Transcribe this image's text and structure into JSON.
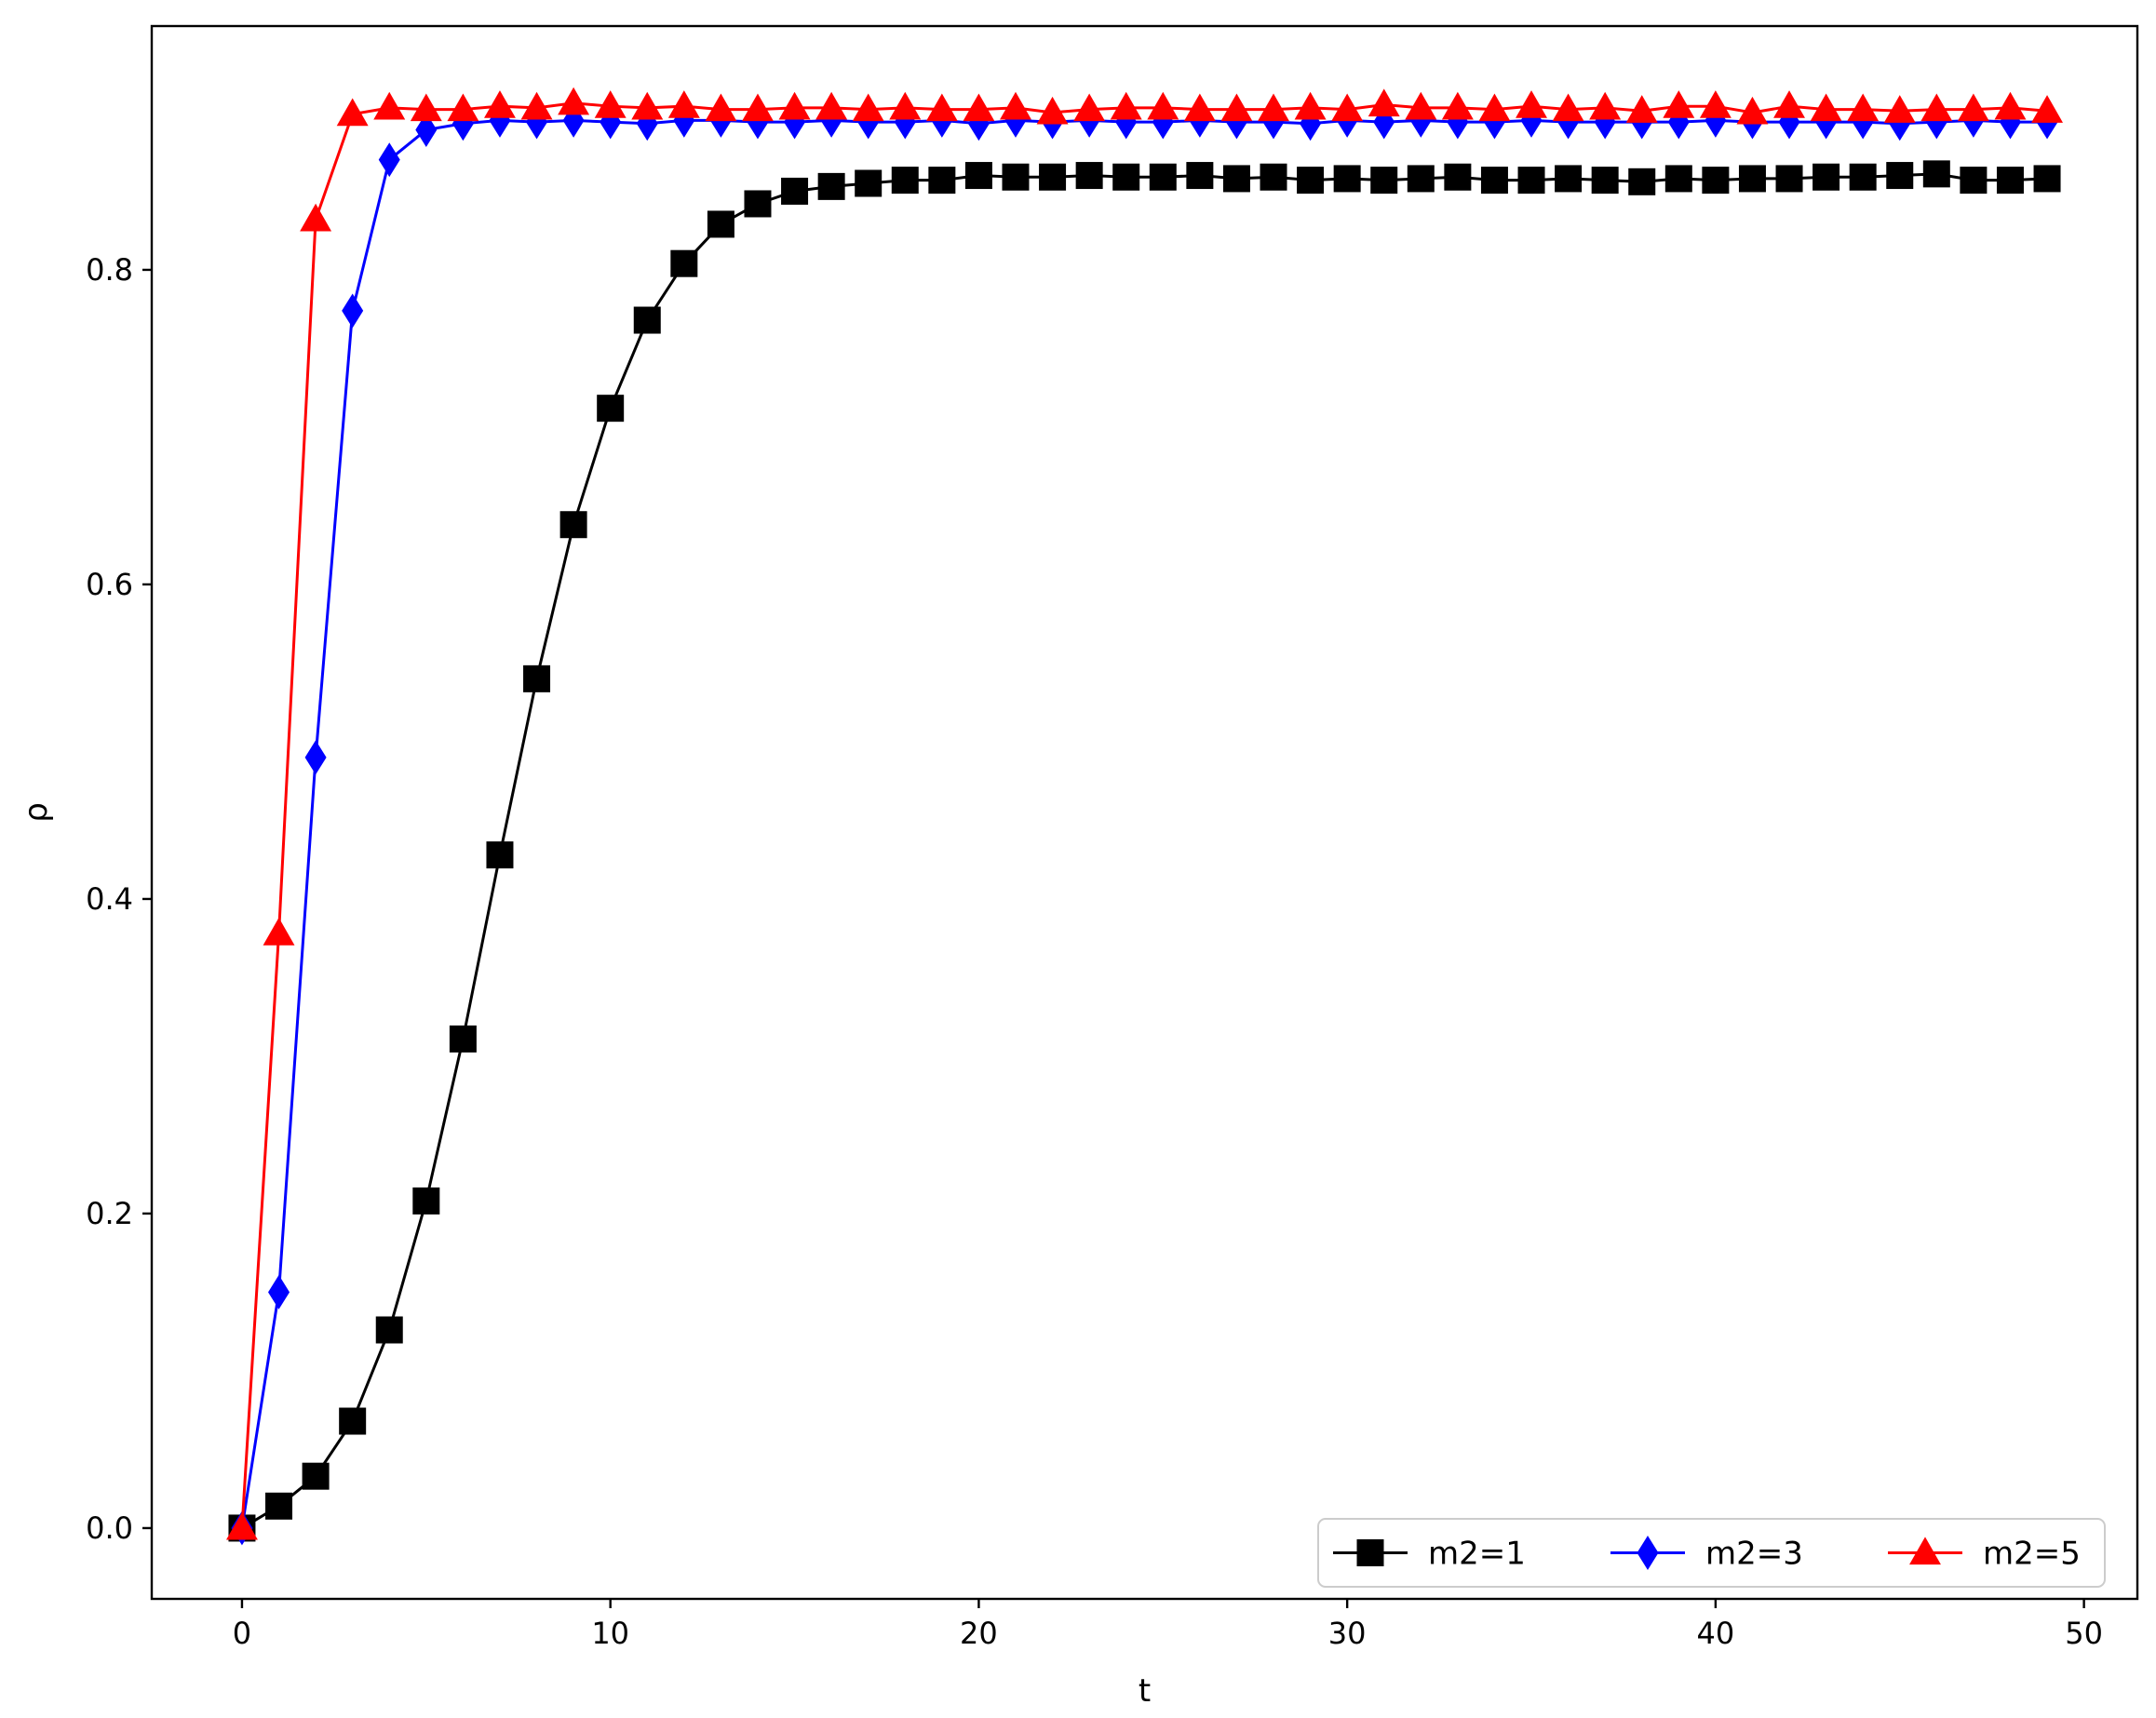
{
  "chart_data": {
    "type": "line",
    "title": "",
    "xlabel": "t",
    "ylabel": "ρ",
    "xlim": [
      -2.45,
      51.45
    ],
    "ylim": [
      -0.045,
      0.955
    ],
    "xticks": [
      0,
      10,
      20,
      30,
      40,
      50
    ],
    "xtick_labels": [
      "0",
      "10",
      "20",
      "30",
      "40",
      "50"
    ],
    "yticks": [
      0.0,
      0.2,
      0.4,
      0.6,
      0.8
    ],
    "ytick_labels": [
      "0.0",
      "0.2",
      "0.4",
      "0.6",
      "0.8"
    ],
    "grid": false,
    "legend": {
      "position": "lower-right",
      "columns": 3
    },
    "x": [
      0,
      1,
      2,
      3,
      4,
      5,
      6,
      7,
      8,
      9,
      10,
      11,
      12,
      13,
      14,
      15,
      16,
      17,
      18,
      19,
      20,
      21,
      22,
      23,
      24,
      25,
      26,
      27,
      28,
      29,
      30,
      31,
      32,
      33,
      34,
      35,
      36,
      37,
      38,
      39,
      40,
      41,
      42,
      43,
      44,
      45,
      46,
      47,
      48,
      49
    ],
    "series": [
      {
        "name": "m2=1",
        "color": "#000000",
        "marker": "square",
        "values": [
          0.0,
          0.014,
          0.033,
          0.068,
          0.126,
          0.208,
          0.311,
          0.428,
          0.54,
          0.638,
          0.712,
          0.768,
          0.804,
          0.829,
          0.842,
          0.85,
          0.853,
          0.855,
          0.857,
          0.857,
          0.86,
          0.859,
          0.859,
          0.86,
          0.859,
          0.859,
          0.86,
          0.858,
          0.859,
          0.857,
          0.858,
          0.857,
          0.858,
          0.859,
          0.857,
          0.857,
          0.858,
          0.857,
          0.856,
          0.858,
          0.857,
          0.858,
          0.858,
          0.859,
          0.859,
          0.86,
          0.861,
          0.857,
          0.857,
          0.858
        ]
      },
      {
        "name": "m2=3",
        "color": "#0000ff",
        "marker": "diamond",
        "values": [
          0.0,
          0.15,
          0.49,
          0.774,
          0.87,
          0.889,
          0.893,
          0.895,
          0.894,
          0.895,
          0.894,
          0.893,
          0.895,
          0.895,
          0.894,
          0.894,
          0.895,
          0.894,
          0.894,
          0.895,
          0.893,
          0.895,
          0.894,
          0.895,
          0.894,
          0.894,
          0.895,
          0.894,
          0.894,
          0.893,
          0.895,
          0.894,
          0.895,
          0.894,
          0.894,
          0.895,
          0.894,
          0.894,
          0.894,
          0.894,
          0.895,
          0.894,
          0.894,
          0.894,
          0.894,
          0.893,
          0.894,
          0.895,
          0.894,
          0.894
        ]
      },
      {
        "name": "m2=5",
        "color": "#ff0000",
        "marker": "triangle",
        "values": [
          0.0,
          0.378,
          0.832,
          0.899,
          0.903,
          0.902,
          0.902,
          0.904,
          0.903,
          0.906,
          0.904,
          0.903,
          0.904,
          0.902,
          0.902,
          0.903,
          0.903,
          0.902,
          0.903,
          0.902,
          0.902,
          0.903,
          0.9,
          0.902,
          0.903,
          0.903,
          0.902,
          0.902,
          0.902,
          0.903,
          0.902,
          0.905,
          0.903,
          0.903,
          0.902,
          0.904,
          0.902,
          0.903,
          0.901,
          0.904,
          0.904,
          0.9,
          0.904,
          0.902,
          0.902,
          0.901,
          0.902,
          0.902,
          0.903,
          0.901
        ]
      }
    ]
  }
}
